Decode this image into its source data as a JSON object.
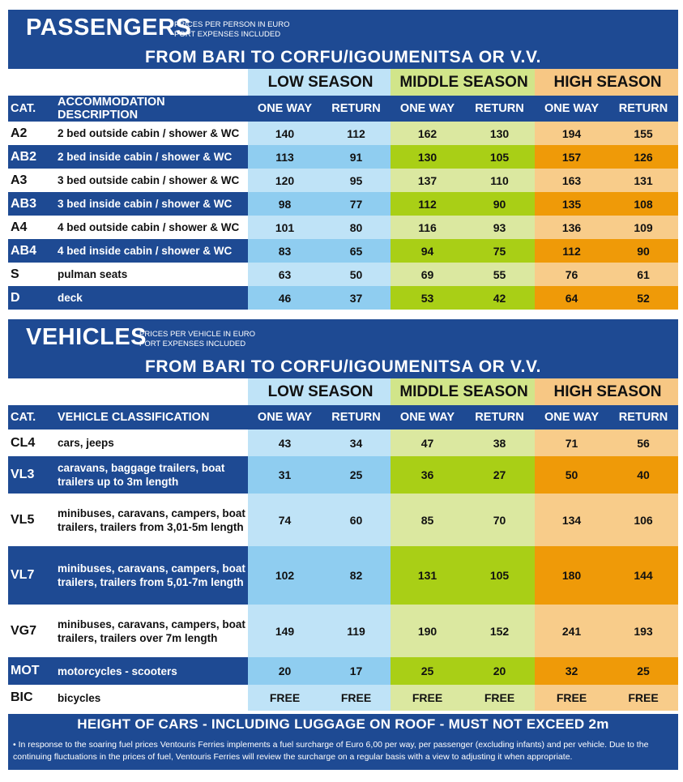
{
  "passengers": {
    "title": "PASSENGERS",
    "note_line1": "PRICES PER PERSON IN EURO",
    "note_line2": "PORT EXPENSES INCLUDED",
    "route": "FROM BARI TO CORFU/IGOUMENITSA OR V.V.",
    "seasons": [
      "LOW SEASON",
      "MIDDLE SEASON",
      "HIGH SEASON"
    ],
    "col_cat": "CAT.",
    "col_desc": "ACCOMMODATION DESCRIPTION",
    "col_oneway": "ONE WAY",
    "col_return": "RETURN",
    "rows": [
      {
        "cat": "A2",
        "desc": "2 bed outside cabin / shower & WC",
        "v": [
          "140",
          "112",
          "162",
          "130",
          "194",
          "155"
        ]
      },
      {
        "cat": "AB2",
        "desc": "2 bed inside cabin / shower & WC",
        "v": [
          "113",
          "91",
          "130",
          "105",
          "157",
          "126"
        ]
      },
      {
        "cat": "A3",
        "desc": "3 bed outside cabin / shower & WC",
        "v": [
          "120",
          "95",
          "137",
          "110",
          "163",
          "131"
        ]
      },
      {
        "cat": "AB3",
        "desc": "3 bed inside cabin / shower & WC",
        "v": [
          "98",
          "77",
          "112",
          "90",
          "135",
          "108"
        ]
      },
      {
        "cat": "A4",
        "desc": "4 bed outside cabin / shower & WC",
        "v": [
          "101",
          "80",
          "116",
          "93",
          "136",
          "109"
        ]
      },
      {
        "cat": "AB4",
        "desc": "4 bed inside cabin / shower & WC",
        "v": [
          "83",
          "65",
          "94",
          "75",
          "112",
          "90"
        ]
      },
      {
        "cat": "S",
        "desc": "pulman seats",
        "v": [
          "63",
          "50",
          "69",
          "55",
          "76",
          "61"
        ]
      },
      {
        "cat": "D",
        "desc": "deck",
        "v": [
          "46",
          "37",
          "53",
          "42",
          "64",
          "52"
        ]
      }
    ]
  },
  "vehicles": {
    "title": "VEHICLES",
    "note_line1": "PRICES PER VEHICLE IN EURO",
    "note_line2": "PORT EXPENSES INCLUDED",
    "route": "FROM BARI TO CORFU/IGOUMENITSA OR V.V.",
    "seasons": [
      "LOW SEASON",
      "MIDDLE SEASON",
      "HIGH SEASON"
    ],
    "col_cat": "CAT.",
    "col_desc": "VEHICLE CLASSIFICATION",
    "col_oneway": "ONE WAY",
    "col_return": "RETURN",
    "rows": [
      {
        "cat": "CL4",
        "desc": "cars, jeeps",
        "v": [
          "43",
          "34",
          "47",
          "38",
          "71",
          "56"
        ]
      },
      {
        "cat": "VL3",
        "desc": "caravans, baggage trailers, boat trailers up to 3m length",
        "v": [
          "31",
          "25",
          "36",
          "27",
          "50",
          "40"
        ]
      },
      {
        "cat": "VL5",
        "desc": "minibuses, caravans, campers, boat trailers, trailers from 3,01-5m length",
        "v": [
          "74",
          "60",
          "85",
          "70",
          "134",
          "106"
        ]
      },
      {
        "cat": "VL7",
        "desc": "minibuses, caravans, campers, boat trailers, trailers from 5,01-7m length",
        "v": [
          "102",
          "82",
          "131",
          "105",
          "180",
          "144"
        ]
      },
      {
        "cat": "VG7",
        "desc": "minibuses, caravans, campers, boat trailers, trailers over 7m length",
        "v": [
          "149",
          "119",
          "190",
          "152",
          "241",
          "193"
        ]
      },
      {
        "cat": "MOT",
        "desc": "motorcycles - scooters",
        "v": [
          "20",
          "17",
          "25",
          "20",
          "32",
          "25"
        ]
      },
      {
        "cat": "BIC",
        "desc": "bicycles",
        "v": [
          "FREE",
          "FREE",
          "FREE",
          "FREE",
          "FREE",
          "FREE"
        ]
      }
    ]
  },
  "footer": {
    "warning": "HEIGHT OF CARS - INCLUDING LUGGAGE ON ROOF - MUST NOT EXCEED 2m",
    "note": "• In response to the soaring fuel prices Ventouris Ferries implements a fuel surcharge of Euro 6,00 per way, per passenger (excluding infants) and per vehicle. Due to the continuing fluctuations in the prices of fuel, Ventouris Ferries will review the surcharge on a regular basis with a view to adjusting it when appropriate."
  },
  "colors": {
    "navy": "#1e4a93",
    "low_light": "#bfe3f7",
    "low_dark": "#8fcdf0",
    "mid_light": "#dbe8a0",
    "mid_dark": "#a9cf16",
    "high_light": "#f8cc8a",
    "high_dark": "#ef9a08"
  }
}
